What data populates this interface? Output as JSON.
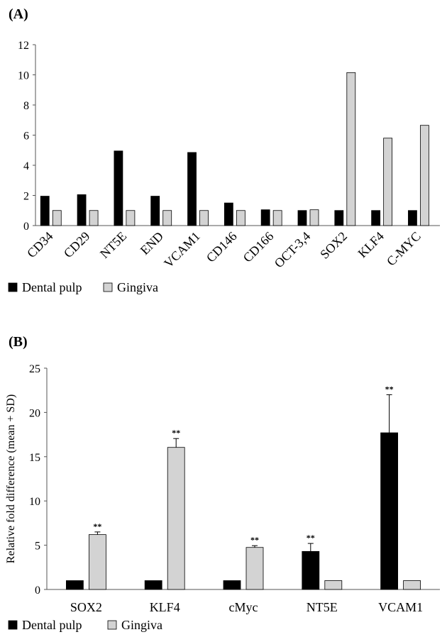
{
  "chart_data": [
    {
      "panel_label": "(A)",
      "type": "bar",
      "categories": [
        "CD34",
        "CD29",
        "NT5E",
        "END",
        "VCAM1",
        "CD146",
        "CD166",
        "OCT-3,4",
        "SOX2",
        "KLF4",
        "C-MYC"
      ],
      "series": [
        {
          "name": "Dental pulp",
          "color": "#000000",
          "values": [
            1.95,
            2.05,
            4.95,
            1.95,
            4.85,
            1.5,
            1.05,
            1.0,
            1.0,
            1.0,
            1.0
          ]
        },
        {
          "name": "Gingiva",
          "color": "#d3d3d3",
          "values": [
            1.0,
            1.0,
            1.0,
            1.0,
            1.0,
            1.0,
            1.0,
            1.05,
            10.15,
            5.8,
            6.65
          ]
        }
      ],
      "title": "",
      "xlabel": "",
      "ylabel": "",
      "ylim": [
        0,
        12
      ],
      "yticks": [
        0,
        2,
        4,
        6,
        8,
        10,
        12
      ],
      "grid": false,
      "legend_position": "bottom-left"
    },
    {
      "panel_label": "(B)",
      "type": "bar",
      "categories": [
        "SOX2",
        "KLF4",
        "cMyc",
        "NT5E",
        "VCAM1"
      ],
      "series": [
        {
          "name": "Dental pulp",
          "color": "#000000",
          "values": [
            1.0,
            1.0,
            1.0,
            4.3,
            17.7
          ],
          "errors": [
            null,
            null,
            null,
            0.9,
            4.3
          ],
          "significance": [
            "",
            "",
            "",
            "**",
            "**"
          ]
        },
        {
          "name": "Gingiva",
          "color": "#d3d3d3",
          "values": [
            6.2,
            16.05,
            4.75,
            1.0,
            1.0
          ],
          "errors": [
            0.3,
            1.0,
            0.2,
            null,
            null
          ],
          "significance": [
            "**",
            "**",
            "**",
            "",
            ""
          ]
        }
      ],
      "title": "",
      "xlabel": "",
      "ylabel": "Relative fold difference (mean + SD)",
      "ylim": [
        0,
        25
      ],
      "yticks": [
        0,
        5,
        10,
        15,
        20,
        25
      ],
      "grid": false,
      "legend_position": "bottom-left"
    }
  ]
}
